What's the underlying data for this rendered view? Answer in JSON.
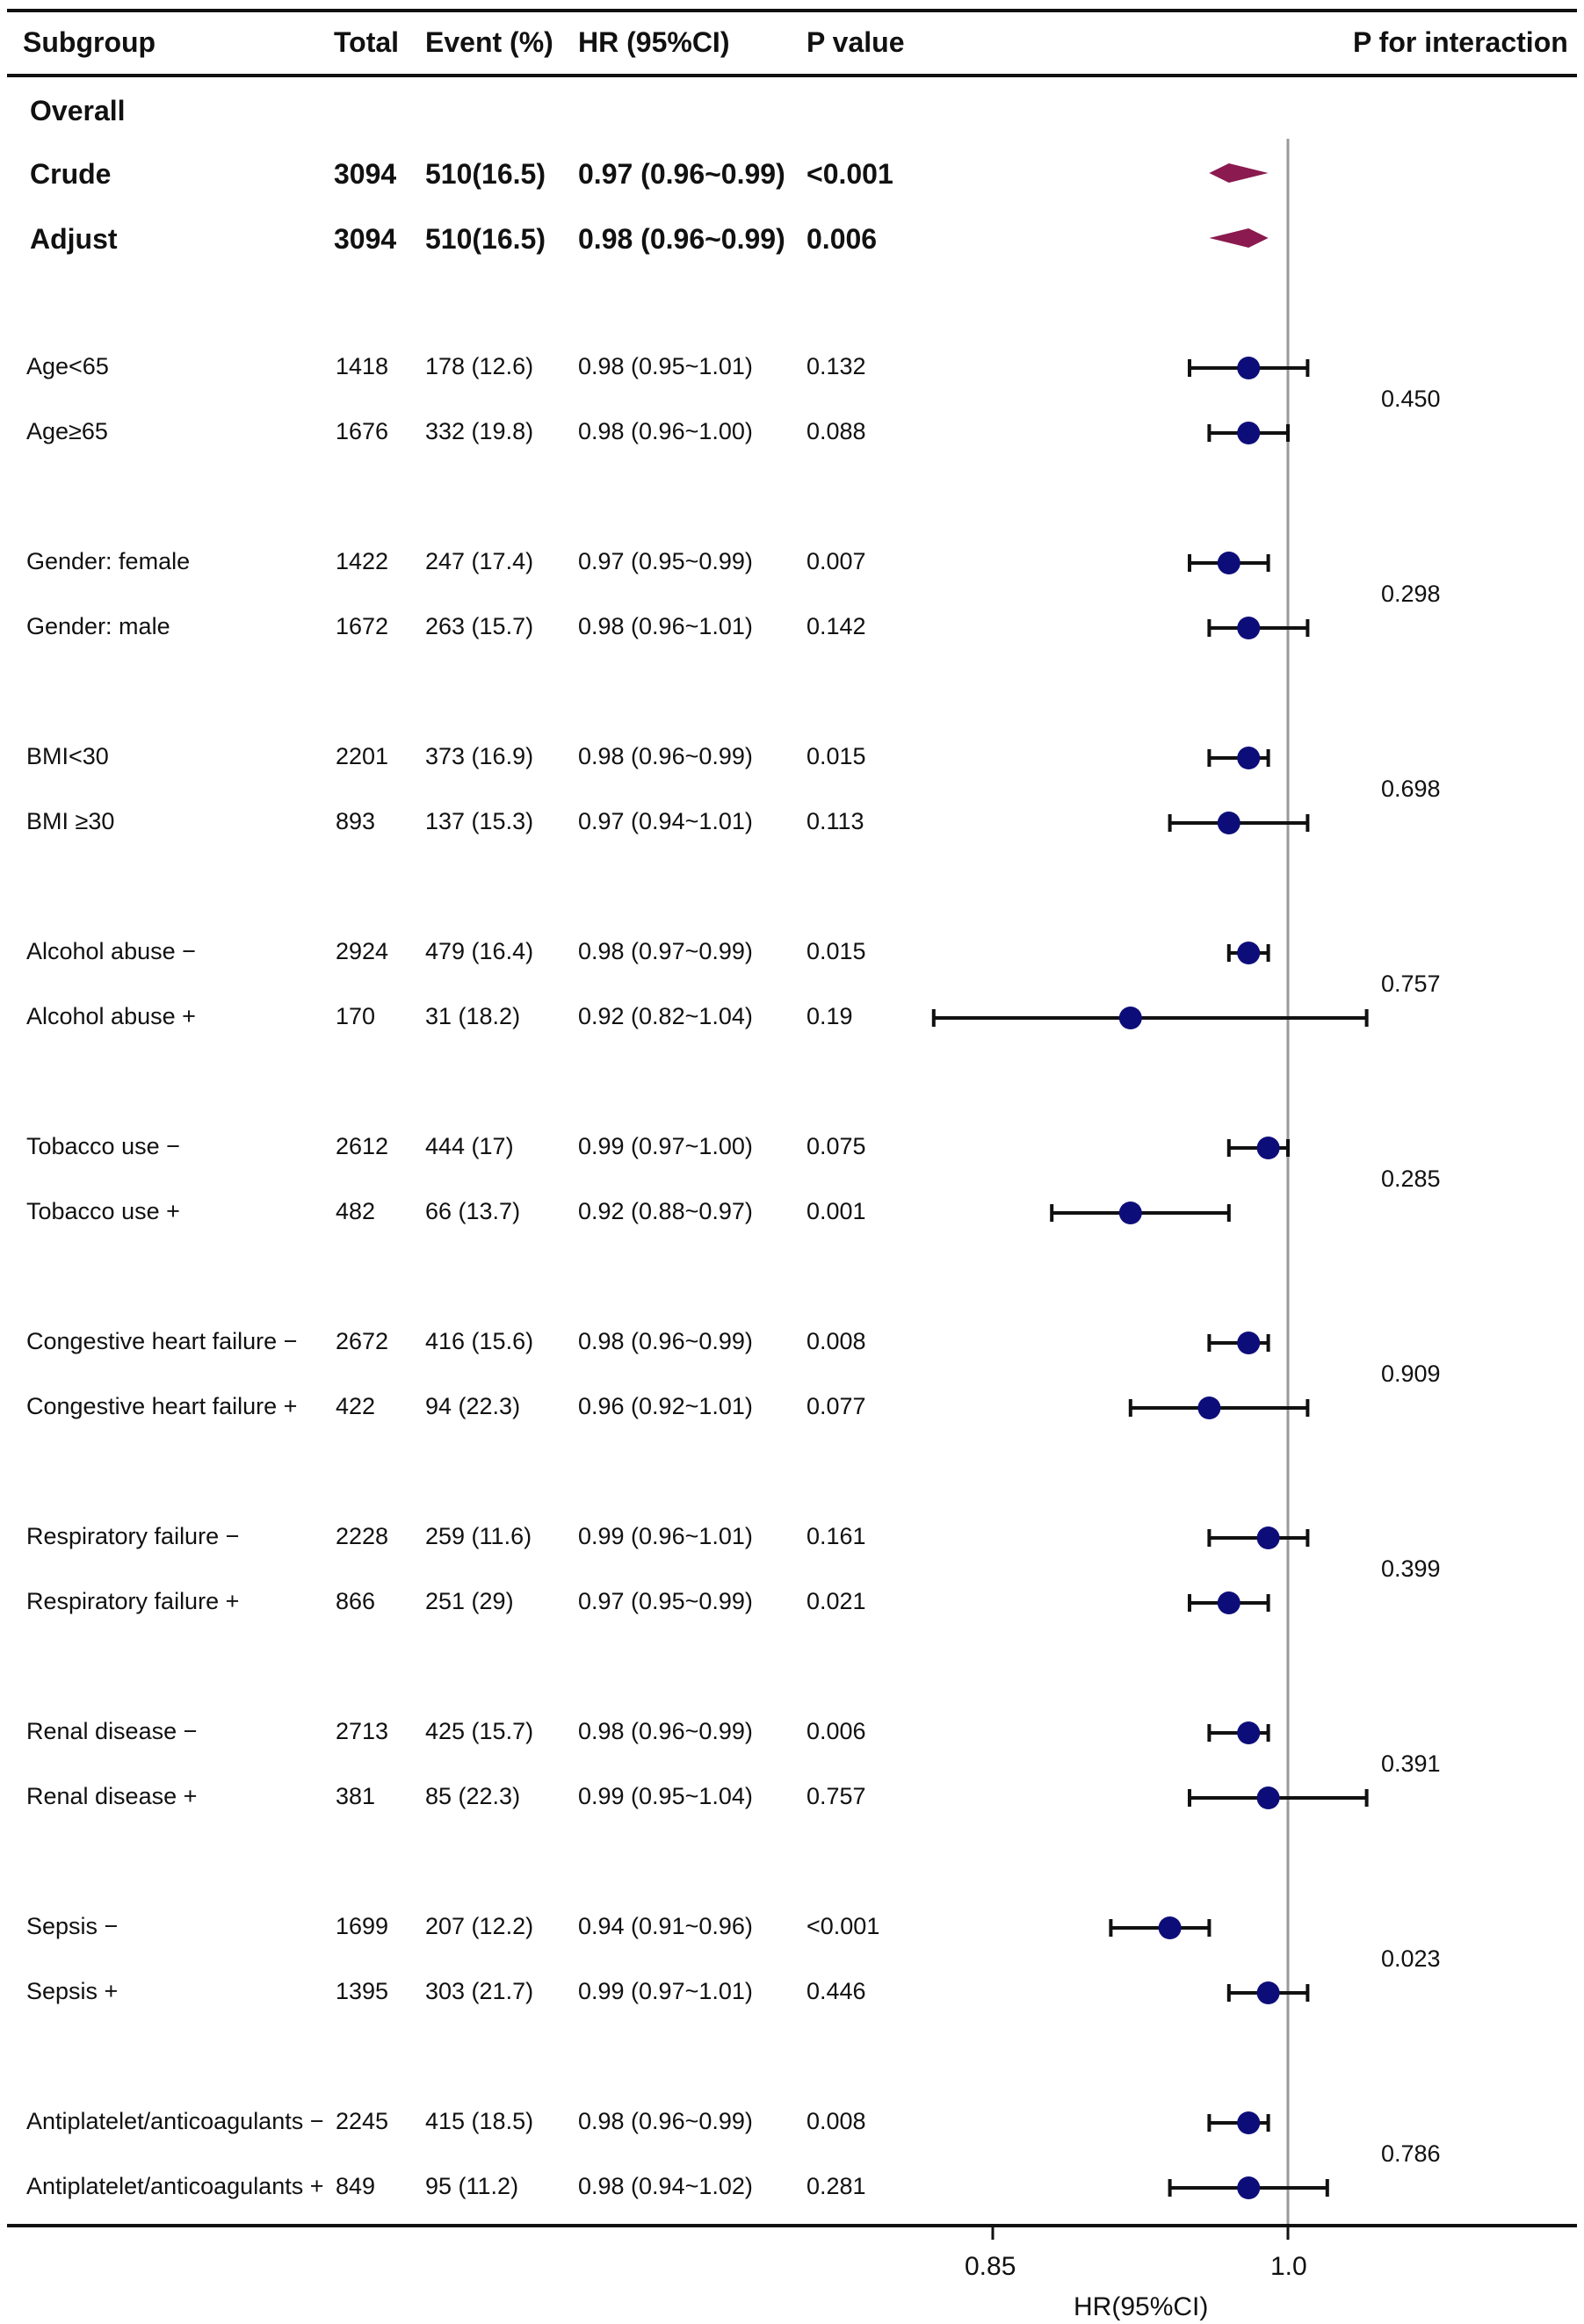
{
  "header": {
    "subgroup": "Subgroup",
    "total": "Total",
    "event": "Event (%)",
    "hr": "HR (95%CI)",
    "p": "P value",
    "pint": "P for interaction"
  },
  "overall_label": "Overall",
  "colors": {
    "diamond": "#8a1a4f",
    "point": "#0d0d7a",
    "ref_line": "#999999",
    "text": "#111111"
  },
  "chart_data": {
    "type": "forest",
    "xlabel": "HR(95%CI)",
    "x_ticks": [
      "0.85",
      "1.0"
    ],
    "reference_line": 1.0,
    "overall": [
      {
        "label": "Crude",
        "total": "3094",
        "event": "510(16.5)",
        "hr_text": "0.97 (0.96~0.99)",
        "p": "<0.001",
        "hr": 0.97,
        "lo": 0.96,
        "hi": 0.99
      },
      {
        "label": "Adjust",
        "total": "3094",
        "event": "510(16.5)",
        "hr_text": "0.98 (0.96~0.99)",
        "p": "0.006",
        "hr": 0.98,
        "lo": 0.96,
        "hi": 0.99
      }
    ],
    "groups": [
      {
        "p_interaction": "0.450",
        "rows": [
          {
            "label": "Age<65",
            "total": "1418",
            "event": "178 (12.6)",
            "hr_text": "0.98 (0.95~1.01)",
            "p": "0.132",
            "hr": 0.98,
            "lo": 0.95,
            "hi": 1.01
          },
          {
            "label": "Age≥65",
            "total": "1676",
            "event": "332 (19.8)",
            "hr_text": "0.98 (0.96~1.00)",
            "p": "0.088",
            "hr": 0.98,
            "lo": 0.96,
            "hi": 1.0
          }
        ]
      },
      {
        "p_interaction": "0.298",
        "rows": [
          {
            "label": "Gender: female",
            "total": "1422",
            "event": "247 (17.4)",
            "hr_text": "0.97 (0.95~0.99)",
            "p": "0.007",
            "hr": 0.97,
            "lo": 0.95,
            "hi": 0.99
          },
          {
            "label": "Gender: male",
            "total": "1672",
            "event": "263 (15.7)",
            "hr_text": "0.98 (0.96~1.01)",
            "p": "0.142",
            "hr": 0.98,
            "lo": 0.96,
            "hi": 1.01
          }
        ]
      },
      {
        "p_interaction": "0.698",
        "rows": [
          {
            "label": "BMI<30",
            "total": "2201",
            "event": "373 (16.9)",
            "hr_text": "0.98 (0.96~0.99)",
            "p": "0.015",
            "hr": 0.98,
            "lo": 0.96,
            "hi": 0.99
          },
          {
            "label": "BMI ≥30",
            "total": "893",
            "event": "137 (15.3)",
            "hr_text": "0.97 (0.94~1.01)",
            "p": "0.113",
            "hr": 0.97,
            "lo": 0.94,
            "hi": 1.01
          }
        ]
      },
      {
        "p_interaction": "0.757",
        "rows": [
          {
            "label": "Alcohol abuse  −",
            "total": "2924",
            "event": "479 (16.4)",
            "hr_text": "0.98 (0.97~0.99)",
            "p": "0.015",
            "hr": 0.98,
            "lo": 0.97,
            "hi": 0.99
          },
          {
            "label": "Alcohol abuse +",
            "total": "170",
            "event": "31 (18.2)",
            "hr_text": "0.92 (0.82~1.04)",
            "p": "0.19",
            "hr": 0.92,
            "lo": 0.82,
            "hi": 1.04
          }
        ]
      },
      {
        "p_interaction": "0.285",
        "rows": [
          {
            "label": "Tobacco use −",
            "total": "2612",
            "event": "444 (17)",
            "hr_text": "0.99 (0.97~1.00)",
            "p": "0.075",
            "hr": 0.99,
            "lo": 0.97,
            "hi": 1.0
          },
          {
            "label": "Tobacco use +",
            "total": "482",
            "event": "66 (13.7)",
            "hr_text": "0.92 (0.88~0.97)",
            "p": "0.001",
            "hr": 0.92,
            "lo": 0.88,
            "hi": 0.97
          }
        ]
      },
      {
        "p_interaction": "0.909",
        "rows": [
          {
            "label": "Congestive heart failure −",
            "total": "2672",
            "event": "416 (15.6)",
            "hr_text": "0.98 (0.96~0.99)",
            "p": "0.008",
            "hr": 0.98,
            "lo": 0.96,
            "hi": 0.99
          },
          {
            "label": "Congestive heart failure +",
            "total": "422",
            "event": "94 (22.3)",
            "hr_text": "0.96 (0.92~1.01)",
            "p": "0.077",
            "hr": 0.96,
            "lo": 0.92,
            "hi": 1.01
          }
        ]
      },
      {
        "p_interaction": "0.399",
        "rows": [
          {
            "label": "Respiratory failure −",
            "total": "2228",
            "event": "259 (11.6)",
            "hr_text": "0.99 (0.96~1.01)",
            "p": "0.161",
            "hr": 0.99,
            "lo": 0.96,
            "hi": 1.01
          },
          {
            "label": "Respiratory failure +",
            "total": "866",
            "event": "251 (29)",
            "hr_text": "0.97 (0.95~0.99)",
            "p": "0.021",
            "hr": 0.97,
            "lo": 0.95,
            "hi": 0.99
          }
        ]
      },
      {
        "p_interaction": "0.391",
        "rows": [
          {
            "label": "Renal disease −",
            "total": "2713",
            "event": "425 (15.7)",
            "hr_text": "0.98 (0.96~0.99)",
            "p": "0.006",
            "hr": 0.98,
            "lo": 0.96,
            "hi": 0.99
          },
          {
            "label": "Renal disease +",
            "total": "381",
            "event": "85 (22.3)",
            "hr_text": "0.99 (0.95~1.04)",
            "p": "0.757",
            "hr": 0.99,
            "lo": 0.95,
            "hi": 1.04
          }
        ]
      },
      {
        "p_interaction": "0.023",
        "rows": [
          {
            "label": "Sepsis −",
            "total": "1699",
            "event": "207 (12.2)",
            "hr_text": "0.94 (0.91~0.96)",
            "p": "<0.001",
            "hr": 0.94,
            "lo": 0.91,
            "hi": 0.96
          },
          {
            "label": "Sepsis +",
            "total": "1395",
            "event": "303 (21.7)",
            "hr_text": "0.99 (0.97~1.01)",
            "p": "0.446",
            "hr": 0.99,
            "lo": 0.97,
            "hi": 1.01
          }
        ]
      },
      {
        "p_interaction": "0.786",
        "rows": [
          {
            "label": "Antiplatelet/anticoagulants −",
            "total": "2245",
            "event": "415 (18.5)",
            "hr_text": "0.98 (0.96~0.99)",
            "p": "0.008",
            "hr": 0.98,
            "lo": 0.96,
            "hi": 0.99
          },
          {
            "label": "Antiplatelet/anticoagulants +",
            "total": "849",
            "event": "95 (11.2)",
            "hr_text": "0.98 (0.94~1.02)",
            "p": "0.281",
            "hr": 0.98,
            "lo": 0.94,
            "hi": 1.02
          }
        ]
      }
    ]
  }
}
